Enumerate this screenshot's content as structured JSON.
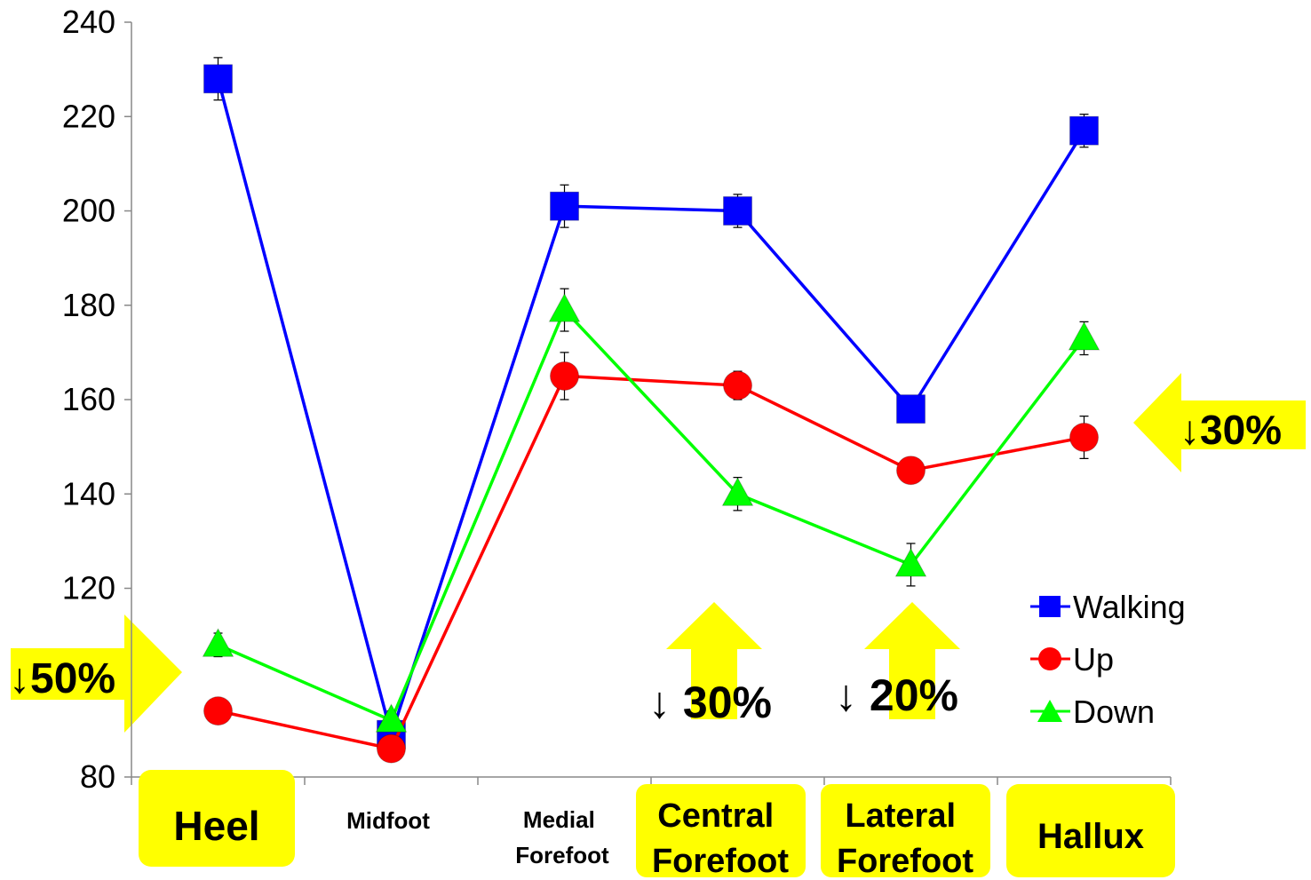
{
  "chart_data": {
    "type": "line",
    "categories": [
      "Heel",
      "Midfoot",
      "Medial Forefoot",
      "Central Forefoot",
      "Lateral Forefoot",
      "Hallux"
    ],
    "ylim": [
      80,
      240
    ],
    "yticks": [
      80,
      120,
      140,
      160,
      180,
      200,
      220,
      240
    ],
    "grid": false,
    "legend_position": "bottom-right",
    "series": [
      {
        "name": "Walking",
        "color": "#0000ff",
        "marker": "square",
        "values": [
          228,
          89,
          201,
          200,
          158,
          217
        ],
        "errors": [
          4.5,
          2,
          4.5,
          3.5,
          2,
          3.5
        ]
      },
      {
        "name": "Up",
        "color": "#ff0000",
        "marker": "circle",
        "values": [
          94,
          86,
          165,
          163,
          145,
          152
        ],
        "errors": [
          2.5,
          2,
          5,
          3,
          2,
          4.5
        ]
      },
      {
        "name": "Down",
        "color": "#00ff00",
        "marker": "triangle",
        "values": [
          108,
          92,
          179,
          140,
          125,
          173
        ],
        "errors": [
          2.5,
          2,
          4.5,
          3.5,
          4.5,
          3.5
        ]
      }
    ],
    "annotations": [
      {
        "text": "↓50%",
        "target": "Heel",
        "arrow": "right"
      },
      {
        "text": "↓30%",
        "target": "Hallux",
        "arrow": "left"
      },
      {
        "text": "↓ 30%",
        "target": "Central Forefoot",
        "arrow": "up"
      },
      {
        "text": "↓ 20%",
        "target": "Lateral Forefoot",
        "arrow": "up"
      }
    ]
  },
  "colors": {
    "highlight": "#ffff00",
    "walking": "#0000ff",
    "up": "#ff0000",
    "down": "#00ff00"
  }
}
